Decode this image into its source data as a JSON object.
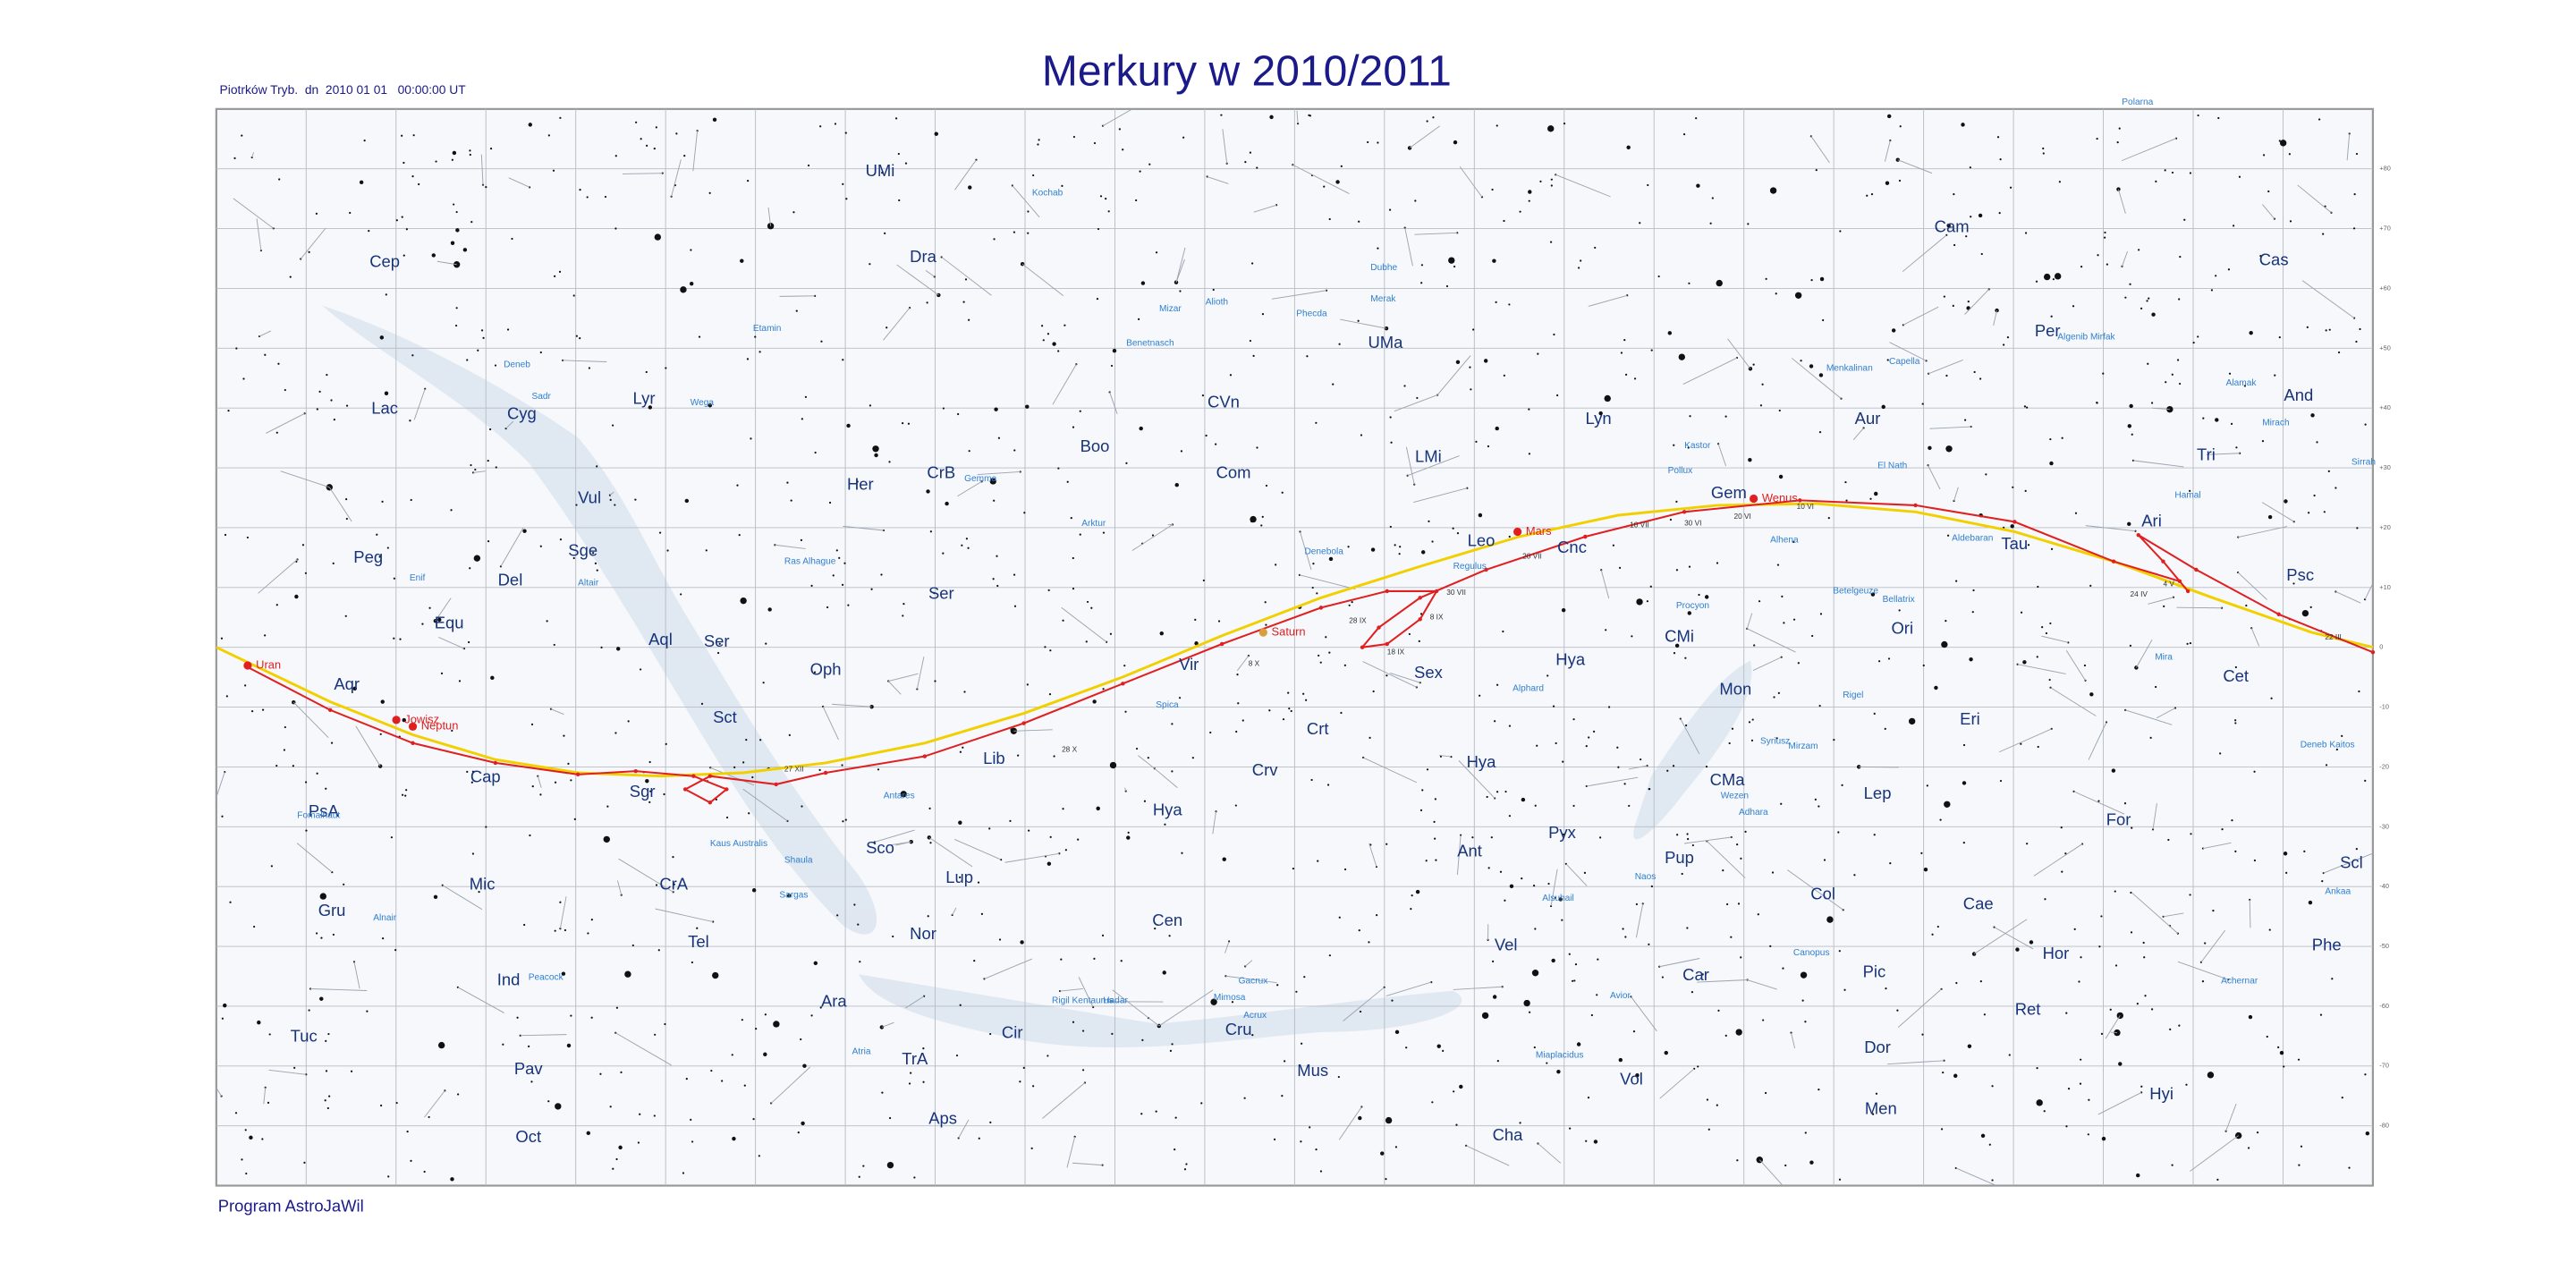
{
  "header": {
    "title": "Merkury w 2010/2011",
    "info": "Piotrków Tryb.  dn  2010 01 01   00:00:00 UT"
  },
  "footer": "Program AstroJaWil",
  "map": {
    "constellations": [
      "UMi",
      "Dra",
      "Cep",
      "Cam",
      "Cas",
      "UMa",
      "Lac",
      "Cyg",
      "Lyr",
      "CVn",
      "Lyn",
      "Aur",
      "Per",
      "And",
      "Boo",
      "Com",
      "LMi",
      "CrB",
      "Her",
      "Tri",
      "Vul",
      "Gem",
      "Ari",
      "Peg",
      "Sge",
      "Del",
      "Ser",
      "Leo",
      "Cnc",
      "Psc",
      "Equ",
      "Aql",
      "Ser",
      "CMi",
      "Ori",
      "Tau",
      "Vir",
      "Oph",
      "Sex",
      "Hya",
      "Cet",
      "Aqr",
      "Sct",
      "Mon",
      "Crt",
      "Eri",
      "Lib",
      "Hya",
      "Crv",
      "CMa",
      "Lep",
      "Cap",
      "Sgr",
      "PsA",
      "Hya",
      "For",
      "Sco",
      "Ant",
      "Pyx",
      "Pup",
      "Scl",
      "Lup",
      "Mic",
      "CrA",
      "Col",
      "Cae",
      "Cen",
      "Gru",
      "Nor",
      "Tel",
      "Vel",
      "Phe",
      "Hor",
      "Pic",
      "Ind",
      "Car",
      "Ara",
      "Cir",
      "Ret",
      "Tuc",
      "Cru",
      "Dor",
      "TrA",
      "Pav",
      "Mus",
      "Vol",
      "Hyi",
      "Men",
      "Aps",
      "Oct",
      "Cha"
    ],
    "stars": [
      "Polarna",
      "Kochab",
      "Dubhe",
      "Merak",
      "Mizar",
      "Alioth",
      "Benetnasch",
      "Phecda",
      "Etamin",
      "Deneb",
      "Sadr",
      "Wega",
      "Menkalinan",
      "Capella",
      "Algenib Mirfak",
      "Alamak",
      "Mirach",
      "Kastor",
      "Pollux",
      "El Nath",
      "Hamal",
      "Sirrah",
      "Enif",
      "Altair",
      "Ras Alhague",
      "Arktur",
      "Gemma",
      "Denebola",
      "Regulus",
      "Alhena",
      "Procyon",
      "Betelgeuze",
      "Bellatrix",
      "Aldebaran",
      "Rigel",
      "Mira",
      "Alphard",
      "Spica",
      "Syriusz",
      "Mirzam",
      "Wezen",
      "Adhara",
      "Antares",
      "Kaus Australis",
      "Shaula",
      "Sargas",
      "Fomalhaut",
      "Alnair",
      "Peacock",
      "Atria",
      "Rigil Kentaurus",
      "Hadar",
      "Gacrux",
      "Mimosa",
      "Acrux",
      "Alsuhail",
      "Naos",
      "Avior",
      "Miaplacidus",
      "Canopus",
      "Achernar",
      "Ankaa",
      "Deneb Kaitos"
    ],
    "planets": [
      "Uran",
      "Neptun",
      "Jowisz",
      "Mars",
      "Saturn",
      "Wenus"
    ],
    "dates": [
      "10 VI",
      "20 VI",
      "30 VI",
      "10 VII",
      "20 VII",
      "30 VII",
      "8 IX",
      "18 IX",
      "28 IX",
      "8 X",
      "28 X",
      "27 XII",
      "22 III",
      "24 IV",
      "4 V"
    ],
    "declination_labels": [
      "+80",
      "+70",
      "+60",
      "+50",
      "+40",
      "+30",
      "+20",
      "+10",
      "0",
      "-10",
      "-20",
      "-30",
      "-40",
      "-50",
      "-60",
      "-70",
      "-80"
    ]
  }
}
